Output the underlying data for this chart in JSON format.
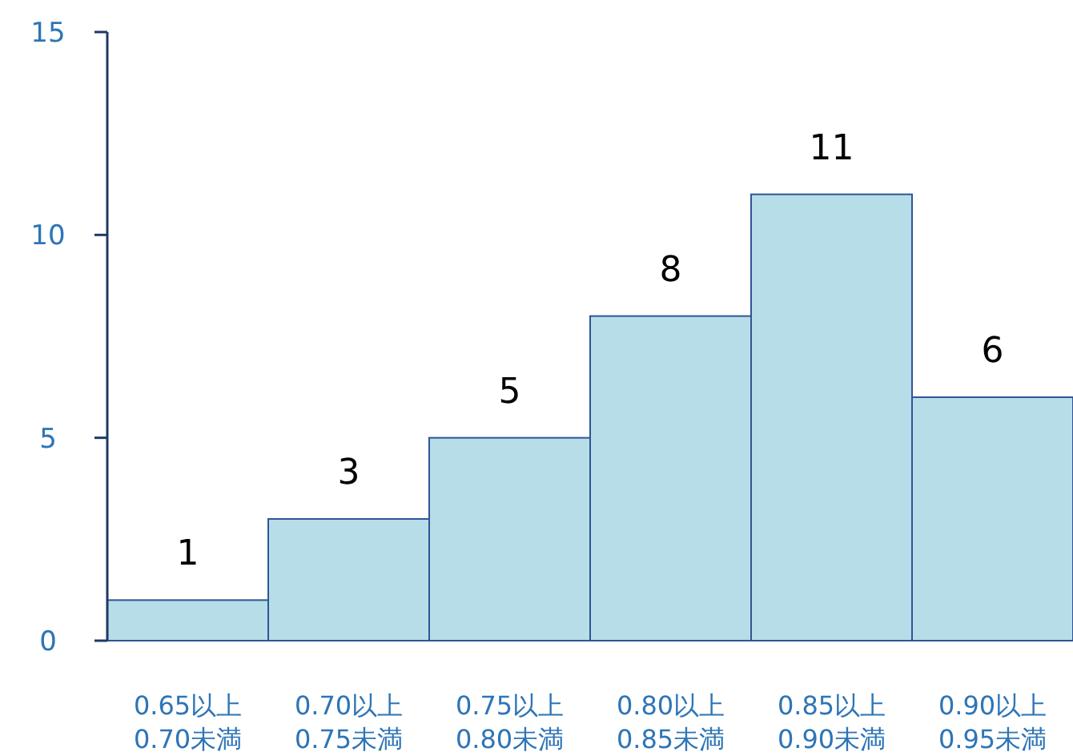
{
  "chart_data": {
    "type": "bar",
    "categories": [
      "0.65以上\n0.70未満",
      "0.70以上\n0.75未満",
      "0.75以上\n0.80未満",
      "0.80以上\n0.85未満",
      "0.85以上\n0.90未満",
      "0.90以上\n0.95未満"
    ],
    "values": [
      1,
      3,
      5,
      8,
      11,
      6
    ],
    "color": "#b7dde8",
    "ylim": [
      0,
      15
    ],
    "yticks": [
      0,
      5,
      10,
      15
    ],
    "data_labels": true
  }
}
